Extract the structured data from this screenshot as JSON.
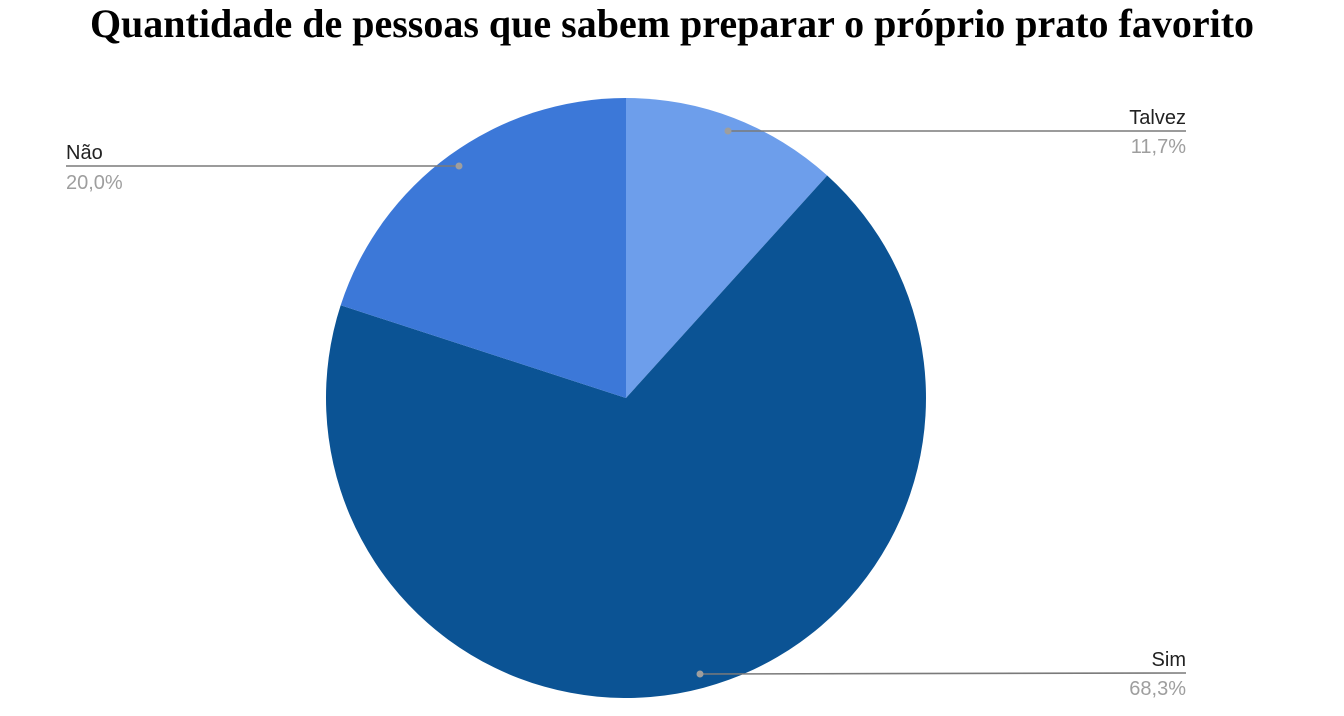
{
  "chart_data": {
    "type": "pie",
    "title": "Quantidade de pessoas que sabem preparar o próprio prato favorito",
    "slices": [
      {
        "label": "Talvez",
        "value": 11.7,
        "pct_text": "11,7%",
        "color": "#6d9eeb"
      },
      {
        "label": "Sim",
        "value": 68.3,
        "pct_text": "68,3%",
        "color": "#0b5394"
      },
      {
        "label": "Não",
        "value": 20.0,
        "pct_text": "20,0%",
        "color": "#3c78d8"
      }
    ],
    "start_angle": "12 o'clock",
    "direction": "clockwise",
    "legend": "none (labels beside slices)"
  }
}
